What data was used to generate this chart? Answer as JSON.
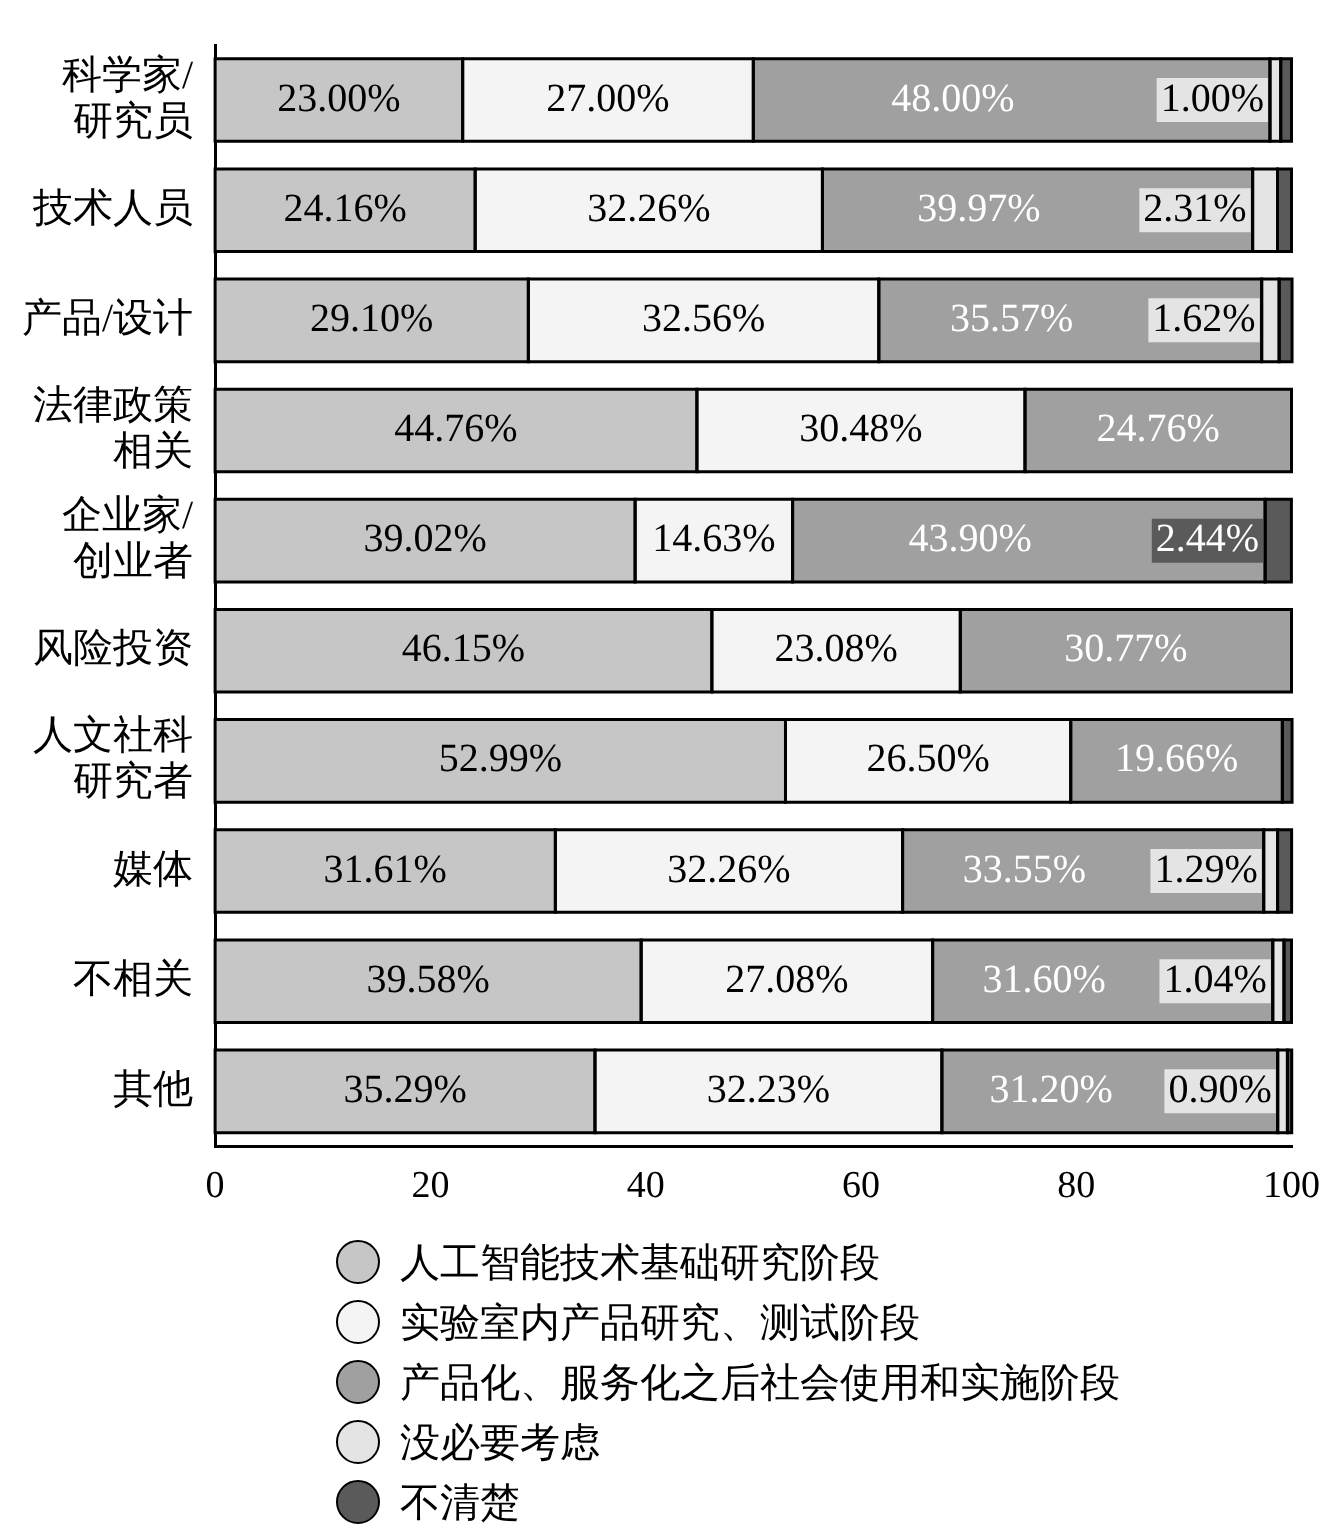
{
  "chart_data": {
    "type": "bar",
    "orientation": "horizontal",
    "stacked": true,
    "categories": [
      "科学家/研究员",
      "技术人员",
      "产品/设计",
      "法律政策相关",
      "企业家/创业者",
      "风险投资",
      "人文社科研究者",
      "媒体",
      "不相关",
      "其他"
    ],
    "xlim": [
      0,
      100
    ],
    "xticks": [
      0,
      20,
      40,
      60,
      80,
      100
    ],
    "grid": false,
    "legend": "bottom",
    "series": [
      {
        "name": "人工智能技术基础研究阶段",
        "color": "#c6c6c6",
        "values": [
          23.0,
          24.16,
          29.1,
          44.76,
          39.02,
          46.15,
          52.99,
          31.61,
          39.58,
          35.29
        ],
        "value_labels": [
          "23.00%",
          "24.16%",
          "29.10%",
          "44.76%",
          "39.02%",
          "46.15%",
          "52.99%",
          "31.61%",
          "39.58%",
          "35.29%"
        ]
      },
      {
        "name": "实验室内产品研究、测试阶段",
        "color": "#f4f4f4",
        "values": [
          27.0,
          32.26,
          32.56,
          30.48,
          14.63,
          23.08,
          26.5,
          32.26,
          27.08,
          32.23
        ],
        "value_labels": [
          "27.00%",
          "32.26%",
          "32.56%",
          "30.48%",
          "14.63%",
          "23.08%",
          "26.50%",
          "32.26%",
          "27.08%",
          "32.23%"
        ]
      },
      {
        "name": "产品化、服务化之后社会使用和实施阶段",
        "color": "#a0a0a0",
        "values": [
          48.0,
          39.97,
          35.57,
          24.76,
          43.9,
          30.77,
          19.66,
          33.55,
          31.6,
          31.2
        ],
        "value_labels": [
          "48.00%",
          "39.97%",
          "35.57%",
          "24.76%",
          "43.90%",
          "30.77%",
          "19.66%",
          "33.55%",
          "31.60%",
          "31.20%"
        ]
      },
      {
        "name": "没必要考虑",
        "color": "#e4e4e4",
        "values": [
          1.0,
          2.31,
          1.62,
          0,
          0,
          0,
          0,
          1.29,
          1.04,
          0.9
        ],
        "value_labels": [
          "1.00%",
          "2.31%",
          "1.62%",
          null,
          null,
          null,
          null,
          "1.29%",
          "1.04%",
          "0.90%"
        ]
      },
      {
        "name": "不清楚",
        "color": "#5a5a5a",
        "values": [
          1.0,
          1.3,
          1.2,
          0,
          2.44,
          0,
          0.9,
          1.3,
          0.7,
          0.4
        ],
        "value_labels": [
          null,
          null,
          null,
          null,
          "2.44%",
          null,
          null,
          null,
          null,
          null
        ]
      }
    ]
  }
}
